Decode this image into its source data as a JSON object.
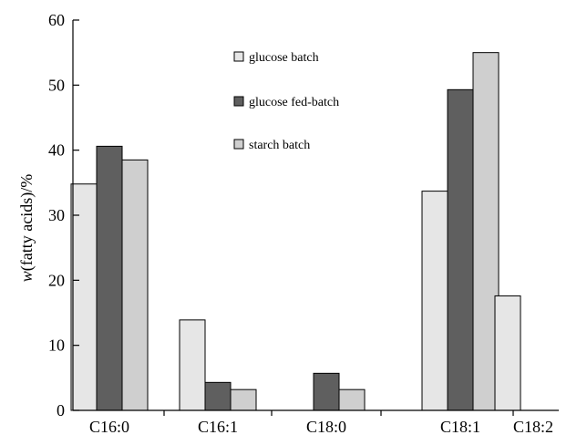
{
  "chart_data": {
    "type": "bar",
    "categories": [
      "C16:0",
      "C16:1",
      "C18:0",
      "C18:1",
      "C18:2"
    ],
    "series": [
      {
        "name": "glucose batch",
        "color": "#e6e6e6",
        "values": [
          34.8,
          13.9,
          0,
          33.7,
          17.6
        ]
      },
      {
        "name": "glucose fed-batch",
        "color": "#5f5f5f",
        "values": [
          40.6,
          4.3,
          5.7,
          49.3,
          0
        ]
      },
      {
        "name": "starch batch",
        "color": "#cfcfcf",
        "values": [
          38.5,
          3.2,
          3.2,
          55.0,
          0
        ]
      }
    ],
    "ylabel_italic": "w",
    "ylabel_rest": "(fatty acids)/%",
    "ylim": [
      0,
      60
    ],
    "yticks": [
      0,
      10,
      20,
      30,
      40,
      50,
      60
    ],
    "grid": false,
    "legend_position": "top-center"
  }
}
